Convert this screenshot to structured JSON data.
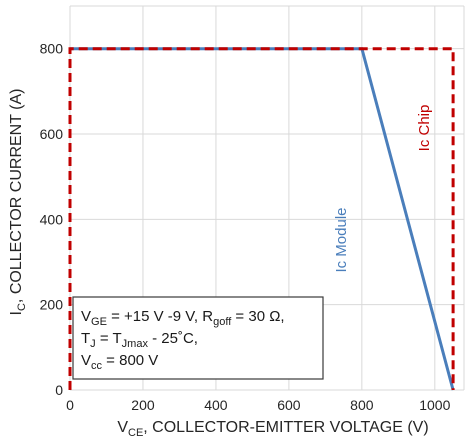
{
  "chart_data": {
    "type": "line",
    "xlabel": {
      "main": "V",
      "sub": "CE",
      "rest": ", COLLECTOR-EMITTER VOLTAGE (V)"
    },
    "ylabel": {
      "main": "I",
      "sub": "C",
      "rest": ", COLLECTOR CURRENT (A)"
    },
    "xlim": [
      0,
      1080
    ],
    "ylim": [
      0,
      900
    ],
    "xticks": [
      0,
      200,
      400,
      600,
      800,
      1000
    ],
    "yticks": [
      0,
      200,
      400,
      600,
      800
    ],
    "grid": true,
    "series": [
      {
        "name": "Ic Chip",
        "color": "#c00000",
        "style": "dashed",
        "x": [
          0,
          0,
          1050,
          1050
        ],
        "y": [
          0,
          800,
          800,
          0
        ]
      },
      {
        "name": "Ic Module",
        "color": "#4a7ebb",
        "style": "solid",
        "x": [
          0,
          800,
          1050
        ],
        "y": [
          800,
          800,
          0
        ]
      }
    ],
    "annotation": {
      "line1": [
        {
          "t": "V",
          "sub": false
        },
        {
          "t": "GE",
          "sub": true
        },
        {
          "t": " = +15 V -9 V, R",
          "sub": false
        },
        {
          "t": "goff",
          "sub": true
        },
        {
          "t": " = 30 Ω,",
          "sub": false
        }
      ],
      "line2": [
        {
          "t": "T",
          "sub": false
        },
        {
          "t": "J",
          "sub": true
        },
        {
          "t": " = T",
          "sub": false
        },
        {
          "t": "Jmax",
          "sub": true
        },
        {
          "t": " - 25˚C,",
          "sub": false
        }
      ],
      "line3": [
        {
          "t": "V",
          "sub": false
        },
        {
          "t": "cc",
          "sub": true
        },
        {
          "t": " = 800 V",
          "sub": false
        }
      ]
    }
  }
}
